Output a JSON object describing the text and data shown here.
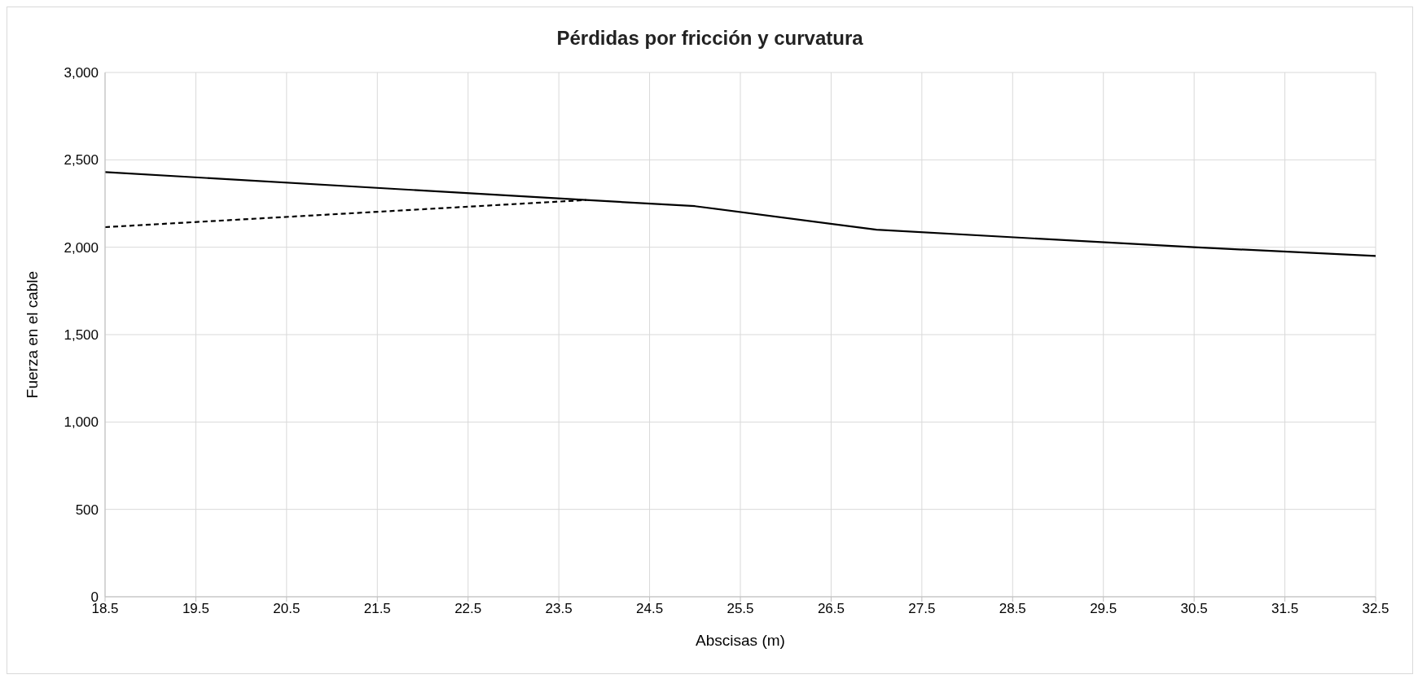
{
  "chart_data": {
    "type": "line",
    "title": "Pérdidas por fricción y curvatura",
    "xlabel": "Abscisas (m)",
    "ylabel": "Fuerza en el cable",
    "series": [
      {
        "color": "#000000",
        "line_style": "solid",
        "x": [
          18.5,
          23.8,
          25.0,
          27.0,
          30.5,
          32.5
        ],
        "values": [
          2430,
          2270,
          2235,
          2100,
          2000,
          1950
        ]
      },
      {
        "color": "#000000",
        "line_style": "dashed",
        "x": [
          18.5,
          23.8
        ],
        "values": [
          2115,
          2270
        ]
      }
    ],
    "xlim": [
      18.5,
      32.5
    ],
    "xticks": [
      18.5,
      19.5,
      20.5,
      21.5,
      22.5,
      23.5,
      24.5,
      25.5,
      26.5,
      27.5,
      28.5,
      29.5,
      30.5,
      31.5,
      32.5
    ],
    "ylim": [
      0,
      3000
    ],
    "yticks": [
      0,
      500,
      {
        "value": 1000,
        "label": "1,000"
      },
      {
        "value": 1500,
        "label": "1,500"
      },
      {
        "value": 2000,
        "label": "2,000"
      },
      {
        "value": 2500,
        "label": "2,500"
      },
      {
        "value": 3000,
        "label": "3,000"
      }
    ],
    "grid": true,
    "marker": "none"
  }
}
